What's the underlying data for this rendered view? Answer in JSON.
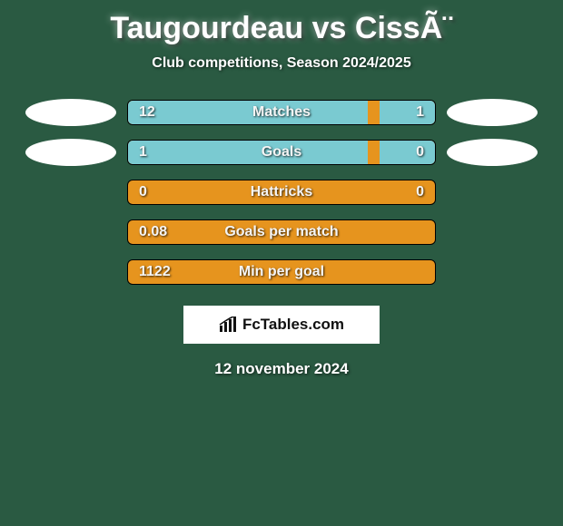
{
  "title": "Taugourdeau vs CissÃ¨",
  "subtitle": "Club competitions, Season 2024/2025",
  "colors": {
    "background": "#2a5a42",
    "bar_base": "#e6941e",
    "bar_fill": "#7acad1",
    "ellipse": "#ffffff",
    "text": "#ffffff",
    "brand_bg": "#ffffff",
    "brand_text": "#111111"
  },
  "stats": [
    {
      "label": "Matches",
      "left_value": "12",
      "right_value": "1",
      "left_fill_pct": 78,
      "right_fill_pct": 18,
      "show_ellipses": true
    },
    {
      "label": "Goals",
      "left_value": "1",
      "right_value": "0",
      "left_fill_pct": 78,
      "right_fill_pct": 18,
      "show_ellipses": true
    },
    {
      "label": "Hattricks",
      "left_value": "0",
      "right_value": "0",
      "left_fill_pct": 0,
      "right_fill_pct": 0,
      "show_ellipses": false
    },
    {
      "label": "Goals per match",
      "left_value": "0.08",
      "right_value": "",
      "left_fill_pct": 0,
      "right_fill_pct": 0,
      "show_ellipses": false
    },
    {
      "label": "Min per goal",
      "left_value": "1122",
      "right_value": "",
      "left_fill_pct": 0,
      "right_fill_pct": 0,
      "show_ellipses": false
    }
  ],
  "brand": "FcTables.com",
  "date": "12 november 2024"
}
